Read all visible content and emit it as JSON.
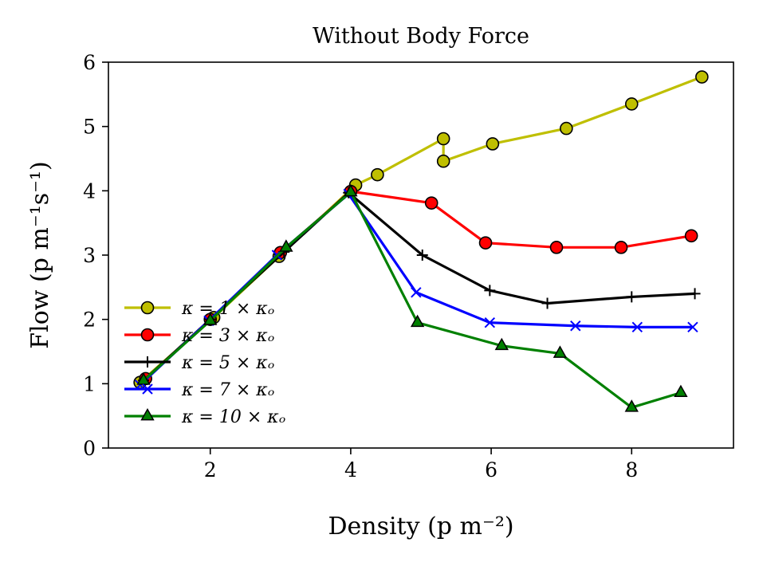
{
  "chart_data": {
    "type": "line",
    "title": "Without Body Force",
    "xlabel": "Density (p m⁻²)",
    "ylabel": "Flow (p m⁻¹s⁻¹)",
    "xlim": [
      0.55,
      9.45
    ],
    "ylim": [
      0,
      6
    ],
    "xticks": [
      2,
      4,
      6,
      8
    ],
    "yticks": [
      0,
      1,
      2,
      3,
      4,
      5,
      6
    ],
    "grid": false,
    "legend_position": "lower-left",
    "series": [
      {
        "name": "κ = 1 × κₒ",
        "color": "#bfbf00",
        "marker": "circle",
        "x": [
          1.0,
          2.05,
          2.98,
          4.07,
          4.38,
          5.32,
          5.32,
          6.02,
          7.07,
          8.0,
          9.0
        ],
        "y": [
          1.02,
          2.03,
          2.98,
          4.09,
          4.25,
          4.81,
          4.46,
          4.73,
          4.97,
          5.35,
          5.77
        ]
      },
      {
        "name": "κ = 3 × κₒ",
        "color": "#ff0000",
        "marker": "circle",
        "x": [
          1.08,
          2.0,
          3.0,
          4.0,
          5.15,
          5.92,
          6.93,
          7.85,
          8.85
        ],
        "y": [
          1.08,
          2.0,
          3.04,
          3.99,
          3.81,
          3.19,
          3.12,
          3.12,
          3.3
        ]
      },
      {
        "name": "κ = 5 × κₒ",
        "color": "#000000",
        "marker": "plus",
        "x": [
          1.05,
          2.0,
          3.05,
          3.97,
          5.02,
          5.98,
          6.8,
          8.0,
          8.9
        ],
        "y": [
          1.05,
          2.0,
          3.05,
          3.97,
          3.0,
          2.45,
          2.25,
          2.35,
          2.4
        ]
      },
      {
        "name": "κ = 7 × κₒ",
        "color": "#0000ff",
        "marker": "x",
        "x": [
          1.0,
          1.98,
          2.95,
          3.97,
          4.93,
          5.98,
          7.2,
          8.08,
          8.87
        ],
        "y": [
          0.98,
          1.98,
          3.0,
          3.95,
          2.42,
          1.95,
          1.9,
          1.88,
          1.88
        ]
      },
      {
        "name": "κ = 10 × κₒ",
        "color": "#008000",
        "marker": "triangle",
        "x": [
          1.05,
          2.0,
          3.08,
          4.0,
          4.95,
          6.15,
          6.98,
          8.0,
          8.7
        ],
        "y": [
          1.05,
          1.98,
          3.12,
          3.98,
          1.95,
          1.59,
          1.47,
          0.63,
          0.86
        ]
      }
    ]
  }
}
